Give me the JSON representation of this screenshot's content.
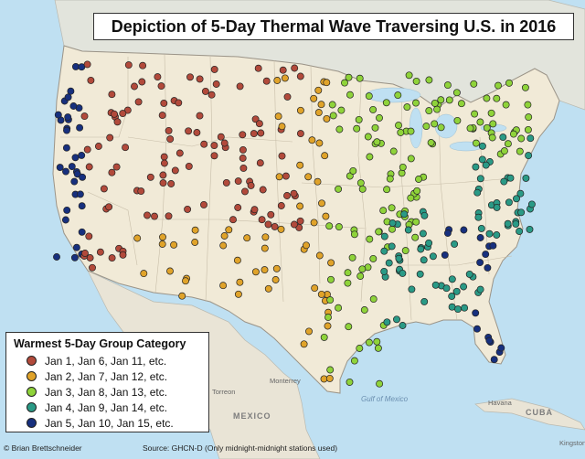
{
  "title": "Depiction of 5-Day Thermal Wave Traversing U.S. in 2016",
  "legend": {
    "title": "Warmest 5-Day Group Category",
    "items": [
      {
        "label": "Jan 1, Jan 6, Jan 11, etc.",
        "color": "#b24a3b"
      },
      {
        "label": "Jan 2, Jan 7, Jan 12, etc.",
        "color": "#e0a32a"
      },
      {
        "label": "Jan 3, Jan 8, Jan 13, etc.",
        "color": "#8fd33a"
      },
      {
        "label": "Jan 4, Jan 9, Jan 14, etc.",
        "color": "#2a9a86"
      },
      {
        "label": "Jan 5, Jan 10, Jan 15, etc.",
        "color": "#17307e"
      }
    ]
  },
  "credit": "© Brian Brettschneider",
  "source": "Source: GHCN-D (Only midnight-midnight stations used)",
  "places": {
    "gulf": "Gulf of Mexico",
    "mexico": "MEXICO",
    "cuba": "CUBA",
    "havana": "Havana",
    "torreon": "Torreon",
    "monterrey": "Monterrey",
    "kingston": "Kingston"
  },
  "colors": {
    "land": "#f1ead7",
    "water": "#bfe0f2",
    "mexico": "#e9e4d6",
    "canada": "#e2e4dc",
    "border": "#9b9488"
  }
}
